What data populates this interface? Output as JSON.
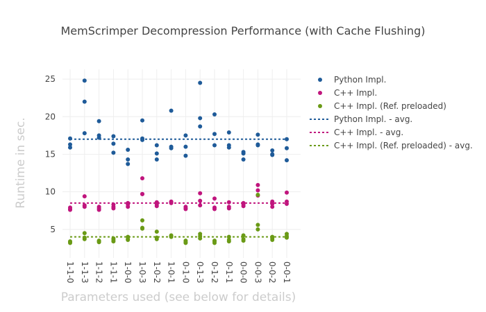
{
  "chart_data": {
    "type": "scatter",
    "title": "MemScrimper Decompression Performance (with Cache Flushing)",
    "xlabel": "Parameters used (see below for details)",
    "ylabel": "Runtime in sec.",
    "categories": [
      "1-1-0",
      "1-1-3",
      "1-1-2",
      "1-1-1",
      "1-0-0",
      "1-0-3",
      "1-0-2",
      "1-0-1",
      "0-1-0",
      "0-1-3",
      "0-1-2",
      "0-1-1",
      "0-0-0",
      "0-0-3",
      "0-0-2",
      "0-0-1"
    ],
    "ylim": [
      1.2,
      26.3
    ],
    "yticks": [
      5,
      10,
      15,
      20,
      25
    ],
    "grid": true,
    "legend_position": "top-right",
    "colors": {
      "python": "#1f5b99",
      "cpp": "#c0157d",
      "cpp_preloaded": "#6a9a16"
    },
    "series": [
      {
        "name": "Python Impl.",
        "values": [
          [
            17.1,
            16.3,
            15.9
          ],
          [
            24.8,
            22.0,
            17.8
          ],
          [
            19.4,
            17.5,
            17.2
          ],
          [
            17.4,
            16.4,
            15.2
          ],
          [
            15.6,
            14.3,
            13.7
          ],
          [
            19.5,
            17.1,
            16.9
          ],
          [
            16.2,
            15.1,
            14.3
          ],
          [
            20.8,
            16.0,
            15.8
          ],
          [
            17.5,
            16.0,
            14.8
          ],
          [
            24.5,
            19.8,
            18.7
          ],
          [
            20.3,
            17.7,
            16.2
          ],
          [
            17.9,
            16.2,
            15.9
          ],
          [
            15.3,
            15.1,
            14.3
          ],
          [
            17.6,
            16.3,
            16.2
          ],
          [
            15.5,
            15.0,
            14.9
          ],
          [
            17.0,
            15.8,
            14.2
          ]
        ]
      },
      {
        "name": "C++ Impl.",
        "values": [
          [
            7.9,
            7.7,
            7.6
          ],
          [
            9.4,
            8.2,
            8.0
          ],
          [
            8.0,
            7.8,
            7.6
          ],
          [
            8.3,
            8.0,
            7.8
          ],
          [
            8.5,
            8.3,
            8.0
          ],
          [
            11.8,
            9.7,
            9.7
          ],
          [
            8.6,
            8.3,
            8.1
          ],
          [
            8.7,
            8.6,
            8.5
          ],
          [
            8.0,
            7.8,
            7.7
          ],
          [
            9.8,
            8.8,
            8.2
          ],
          [
            9.1,
            7.9,
            7.7
          ],
          [
            8.6,
            8.0,
            7.8
          ],
          [
            8.5,
            8.3,
            8.1
          ],
          [
            10.9,
            10.2,
            9.5
          ],
          [
            8.7,
            8.4,
            8.0
          ],
          [
            9.9,
            8.7,
            8.4
          ]
        ]
      },
      {
        "name": "C++ Impl. (Ref. preloaded)",
        "values": [
          [
            3.4,
            3.3,
            3.2
          ],
          [
            4.5,
            3.9,
            3.7
          ],
          [
            3.5,
            3.4,
            3.3
          ],
          [
            3.8,
            3.6,
            3.4
          ],
          [
            4.0,
            3.7,
            3.6
          ],
          [
            6.2,
            5.2,
            5.1
          ],
          [
            4.7,
            3.9,
            3.7
          ],
          [
            4.2,
            4.1,
            4.0
          ],
          [
            3.5,
            3.3,
            3.2
          ],
          [
            4.4,
            4.1,
            3.8
          ],
          [
            3.5,
            3.4,
            3.2
          ],
          [
            4.0,
            3.6,
            3.4
          ],
          [
            4.2,
            3.7,
            3.5
          ],
          [
            9.6,
            5.6,
            5.0
          ],
          [
            4.0,
            3.8,
            3.6
          ],
          [
            4.4,
            4.1,
            3.9
          ]
        ]
      }
    ],
    "averages": [
      {
        "name": "Python Impl. - avg.",
        "value": 17.0
      },
      {
        "name": "C++ Impl. - avg.",
        "value": 8.5
      },
      {
        "name": "C++ Impl. (Ref. preloaded) - avg.",
        "value": 4.0
      }
    ]
  }
}
